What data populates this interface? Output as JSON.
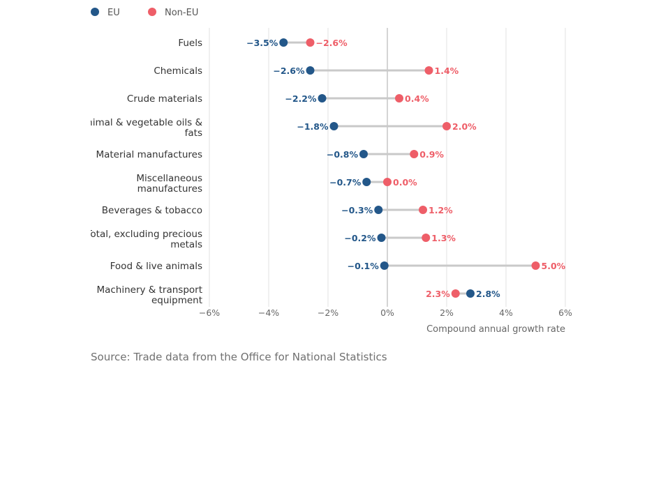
{
  "chart_data": {
    "type": "dumbbell",
    "title": "",
    "xlabel": "Compound annual growth rate",
    "x_unit": "%",
    "xlim": [
      -6,
      6
    ],
    "x_ticks": [
      -6,
      -4,
      -2,
      0,
      2,
      4,
      6
    ],
    "x_tick_labels": [
      "−6%",
      "−4%",
      "−2%",
      "0%",
      "2%",
      "4%",
      "6%"
    ],
    "grid": true,
    "legend_position": "top-left",
    "series": [
      {
        "name": "EU",
        "color": "#235789"
      },
      {
        "name": "Non-EU",
        "color": "#ee5e68"
      }
    ],
    "categories": [
      {
        "label": "Fuels",
        "eu": -3.5,
        "non_eu": -2.6,
        "eu_label": "−3.5%",
        "non_eu_label": "−2.6%"
      },
      {
        "label": "Chemicals",
        "eu": -2.6,
        "non_eu": 1.4,
        "eu_label": "−2.6%",
        "non_eu_label": "1.4%"
      },
      {
        "label": "Crude materials",
        "eu": -2.2,
        "non_eu": 0.4,
        "eu_label": "−2.2%",
        "non_eu_label": "0.4%"
      },
      {
        "label": "Animal & vegetable oils & fats",
        "label_lines": [
          "Animal & vegetable oils &",
          "fats"
        ],
        "eu": -1.8,
        "non_eu": 2.0,
        "eu_label": "−1.8%",
        "non_eu_label": "2.0%"
      },
      {
        "label": "Material manufactures",
        "eu": -0.8,
        "non_eu": 0.9,
        "eu_label": "−0.8%",
        "non_eu_label": "0.9%"
      },
      {
        "label": "Miscellaneous manufactures",
        "label_lines": [
          "Miscellaneous",
          "manufactures"
        ],
        "eu": -0.7,
        "non_eu": 0.0,
        "eu_label": "−0.7%",
        "non_eu_label": "0.0%"
      },
      {
        "label": "Beverages & tobacco",
        "eu": -0.3,
        "non_eu": 1.2,
        "eu_label": "−0.3%",
        "non_eu_label": "1.2%"
      },
      {
        "label": "Total, excluding precious metals",
        "label_lines": [
          "Total, excluding precious",
          "metals"
        ],
        "eu": -0.2,
        "non_eu": 1.3,
        "eu_label": "−0.2%",
        "non_eu_label": "1.3%"
      },
      {
        "label": "Food & live animals",
        "eu": -0.1,
        "non_eu": 5.0,
        "eu_label": "−0.1%",
        "non_eu_label": "5.0%"
      },
      {
        "label": "Machinery & transport equipment",
        "label_lines": [
          "Machinery & transport",
          "equipment"
        ],
        "eu": 2.8,
        "non_eu": 2.3,
        "eu_label": "2.8%",
        "non_eu_label": "2.3%"
      }
    ]
  },
  "source": "Source: Trade data from the Office for National Statistics"
}
